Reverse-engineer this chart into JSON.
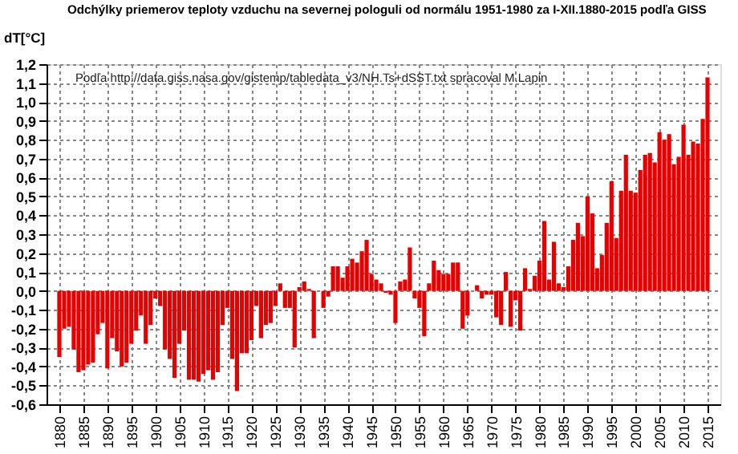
{
  "chart_data": {
    "type": "bar",
    "title": "Odchýlky priemerov teploty vzduchu na severnej pologuli od normálu 1951-1980 za I-XII.1880-2015 podľa GISS",
    "ylabel": "dT[°C]",
    "annotations": [
      "Podľa http://data.giss.nasa.gov/gistemp/tabledata_v3/NH.Ts+dSST.txt spracoval M.Lapin"
    ],
    "x": [
      1880,
      1881,
      1882,
      1883,
      1884,
      1885,
      1886,
      1887,
      1888,
      1889,
      1890,
      1891,
      1892,
      1893,
      1894,
      1895,
      1896,
      1897,
      1898,
      1899,
      1900,
      1901,
      1902,
      1903,
      1904,
      1905,
      1906,
      1907,
      1908,
      1909,
      1910,
      1911,
      1912,
      1913,
      1914,
      1915,
      1916,
      1917,
      1918,
      1919,
      1920,
      1921,
      1922,
      1923,
      1924,
      1925,
      1926,
      1927,
      1928,
      1929,
      1930,
      1931,
      1932,
      1933,
      1934,
      1935,
      1936,
      1937,
      1938,
      1939,
      1940,
      1941,
      1942,
      1943,
      1944,
      1945,
      1946,
      1947,
      1948,
      1949,
      1950,
      1951,
      1952,
      1953,
      1954,
      1955,
      1956,
      1957,
      1958,
      1959,
      1960,
      1961,
      1962,
      1963,
      1964,
      1965,
      1966,
      1967,
      1968,
      1969,
      1970,
      1971,
      1972,
      1973,
      1974,
      1975,
      1976,
      1977,
      1978,
      1979,
      1980,
      1981,
      1982,
      1983,
      1984,
      1985,
      1986,
      1987,
      1988,
      1989,
      1990,
      1991,
      1992,
      1993,
      1994,
      1995,
      1996,
      1997,
      1998,
      1999,
      2000,
      2001,
      2002,
      2003,
      2004,
      2005,
      2006,
      2007,
      2008,
      2009,
      2010,
      2011,
      2012,
      2013,
      2014,
      2015
    ],
    "values": [
      -0.35,
      -0.2,
      -0.19,
      -0.31,
      -0.43,
      -0.42,
      -0.39,
      -0.38,
      -0.23,
      -0.17,
      -0.41,
      -0.25,
      -0.32,
      -0.4,
      -0.38,
      -0.28,
      -0.21,
      -0.13,
      -0.28,
      -0.18,
      -0.04,
      -0.08,
      -0.31,
      -0.36,
      -0.46,
      -0.28,
      -0.21,
      -0.47,
      -0.47,
      -0.48,
      -0.44,
      -0.42,
      -0.47,
      -0.43,
      -0.18,
      -0.09,
      -0.36,
      -0.53,
      -0.33,
      -0.33,
      -0.26,
      -0.08,
      -0.25,
      -0.18,
      -0.17,
      -0.08,
      0.04,
      -0.09,
      -0.09,
      -0.3,
      0.02,
      0.05,
      0.01,
      -0.25,
      0.0,
      -0.09,
      -0.03,
      0.13,
      0.13,
      0.07,
      0.13,
      0.17,
      0.15,
      0.21,
      0.27,
      0.09,
      0.06,
      0.04,
      -0.01,
      -0.02,
      -0.17,
      0.05,
      0.06,
      0.23,
      -0.04,
      -0.09,
      -0.24,
      0.04,
      0.16,
      0.11,
      0.09,
      0.09,
      0.15,
      0.15,
      -0.2,
      -0.13,
      0.0,
      0.03,
      -0.04,
      -0.02,
      -0.02,
      -0.14,
      -0.18,
      0.1,
      -0.19,
      -0.05,
      -0.21,
      0.12,
      0.01,
      0.08,
      0.16,
      0.37,
      0.06,
      0.26,
      0.04,
      0.02,
      0.13,
      0.27,
      0.36,
      0.29,
      0.5,
      0.41,
      0.12,
      0.19,
      0.36,
      0.58,
      0.28,
      0.53,
      0.72,
      0.53,
      0.52,
      0.64,
      0.72,
      0.73,
      0.68,
      0.84,
      0.8,
      0.83,
      0.67,
      0.71,
      0.88,
      0.72,
      0.79,
      0.78,
      0.91,
      1.13
    ],
    "color": "#e60000",
    "xlim": [
      1879,
      2016
    ],
    "xticks": [
      1880,
      1885,
      1890,
      1895,
      1900,
      1905,
      1910,
      1915,
      1920,
      1925,
      1930,
      1935,
      1940,
      1945,
      1950,
      1955,
      1960,
      1965,
      1970,
      1975,
      1980,
      1985,
      1990,
      1995,
      2000,
      2005,
      2010,
      2015
    ],
    "ylim": [
      -0.6,
      1.2
    ],
    "yticks": [
      {
        "value": -0.6,
        "label": "-0,6"
      },
      {
        "value": -0.5,
        "label": "-0,5"
      },
      {
        "value": -0.4,
        "label": "-0,4"
      },
      {
        "value": -0.3,
        "label": "-0,3"
      },
      {
        "value": -0.2,
        "label": "-0,2"
      },
      {
        "value": -0.1,
        "label": "-0,1"
      },
      {
        "value": 0.0,
        "label": "0,0"
      },
      {
        "value": 0.1,
        "label": "0,1"
      },
      {
        "value": 0.2,
        "label": "0,2"
      },
      {
        "value": 0.3,
        "label": "0,3"
      },
      {
        "value": 0.4,
        "label": "0,4"
      },
      {
        "value": 0.5,
        "label": "0,5"
      },
      {
        "value": 0.6,
        "label": "0,6"
      },
      {
        "value": 0.7,
        "label": "0,7"
      },
      {
        "value": 0.8,
        "label": "0,8"
      },
      {
        "value": 0.9,
        "label": "0,9"
      },
      {
        "value": 1.0,
        "label": "1,0"
      },
      {
        "value": 1.1,
        "label": "1,1"
      },
      {
        "value": 1.2,
        "label": "1,2"
      }
    ],
    "grid": true
  }
}
